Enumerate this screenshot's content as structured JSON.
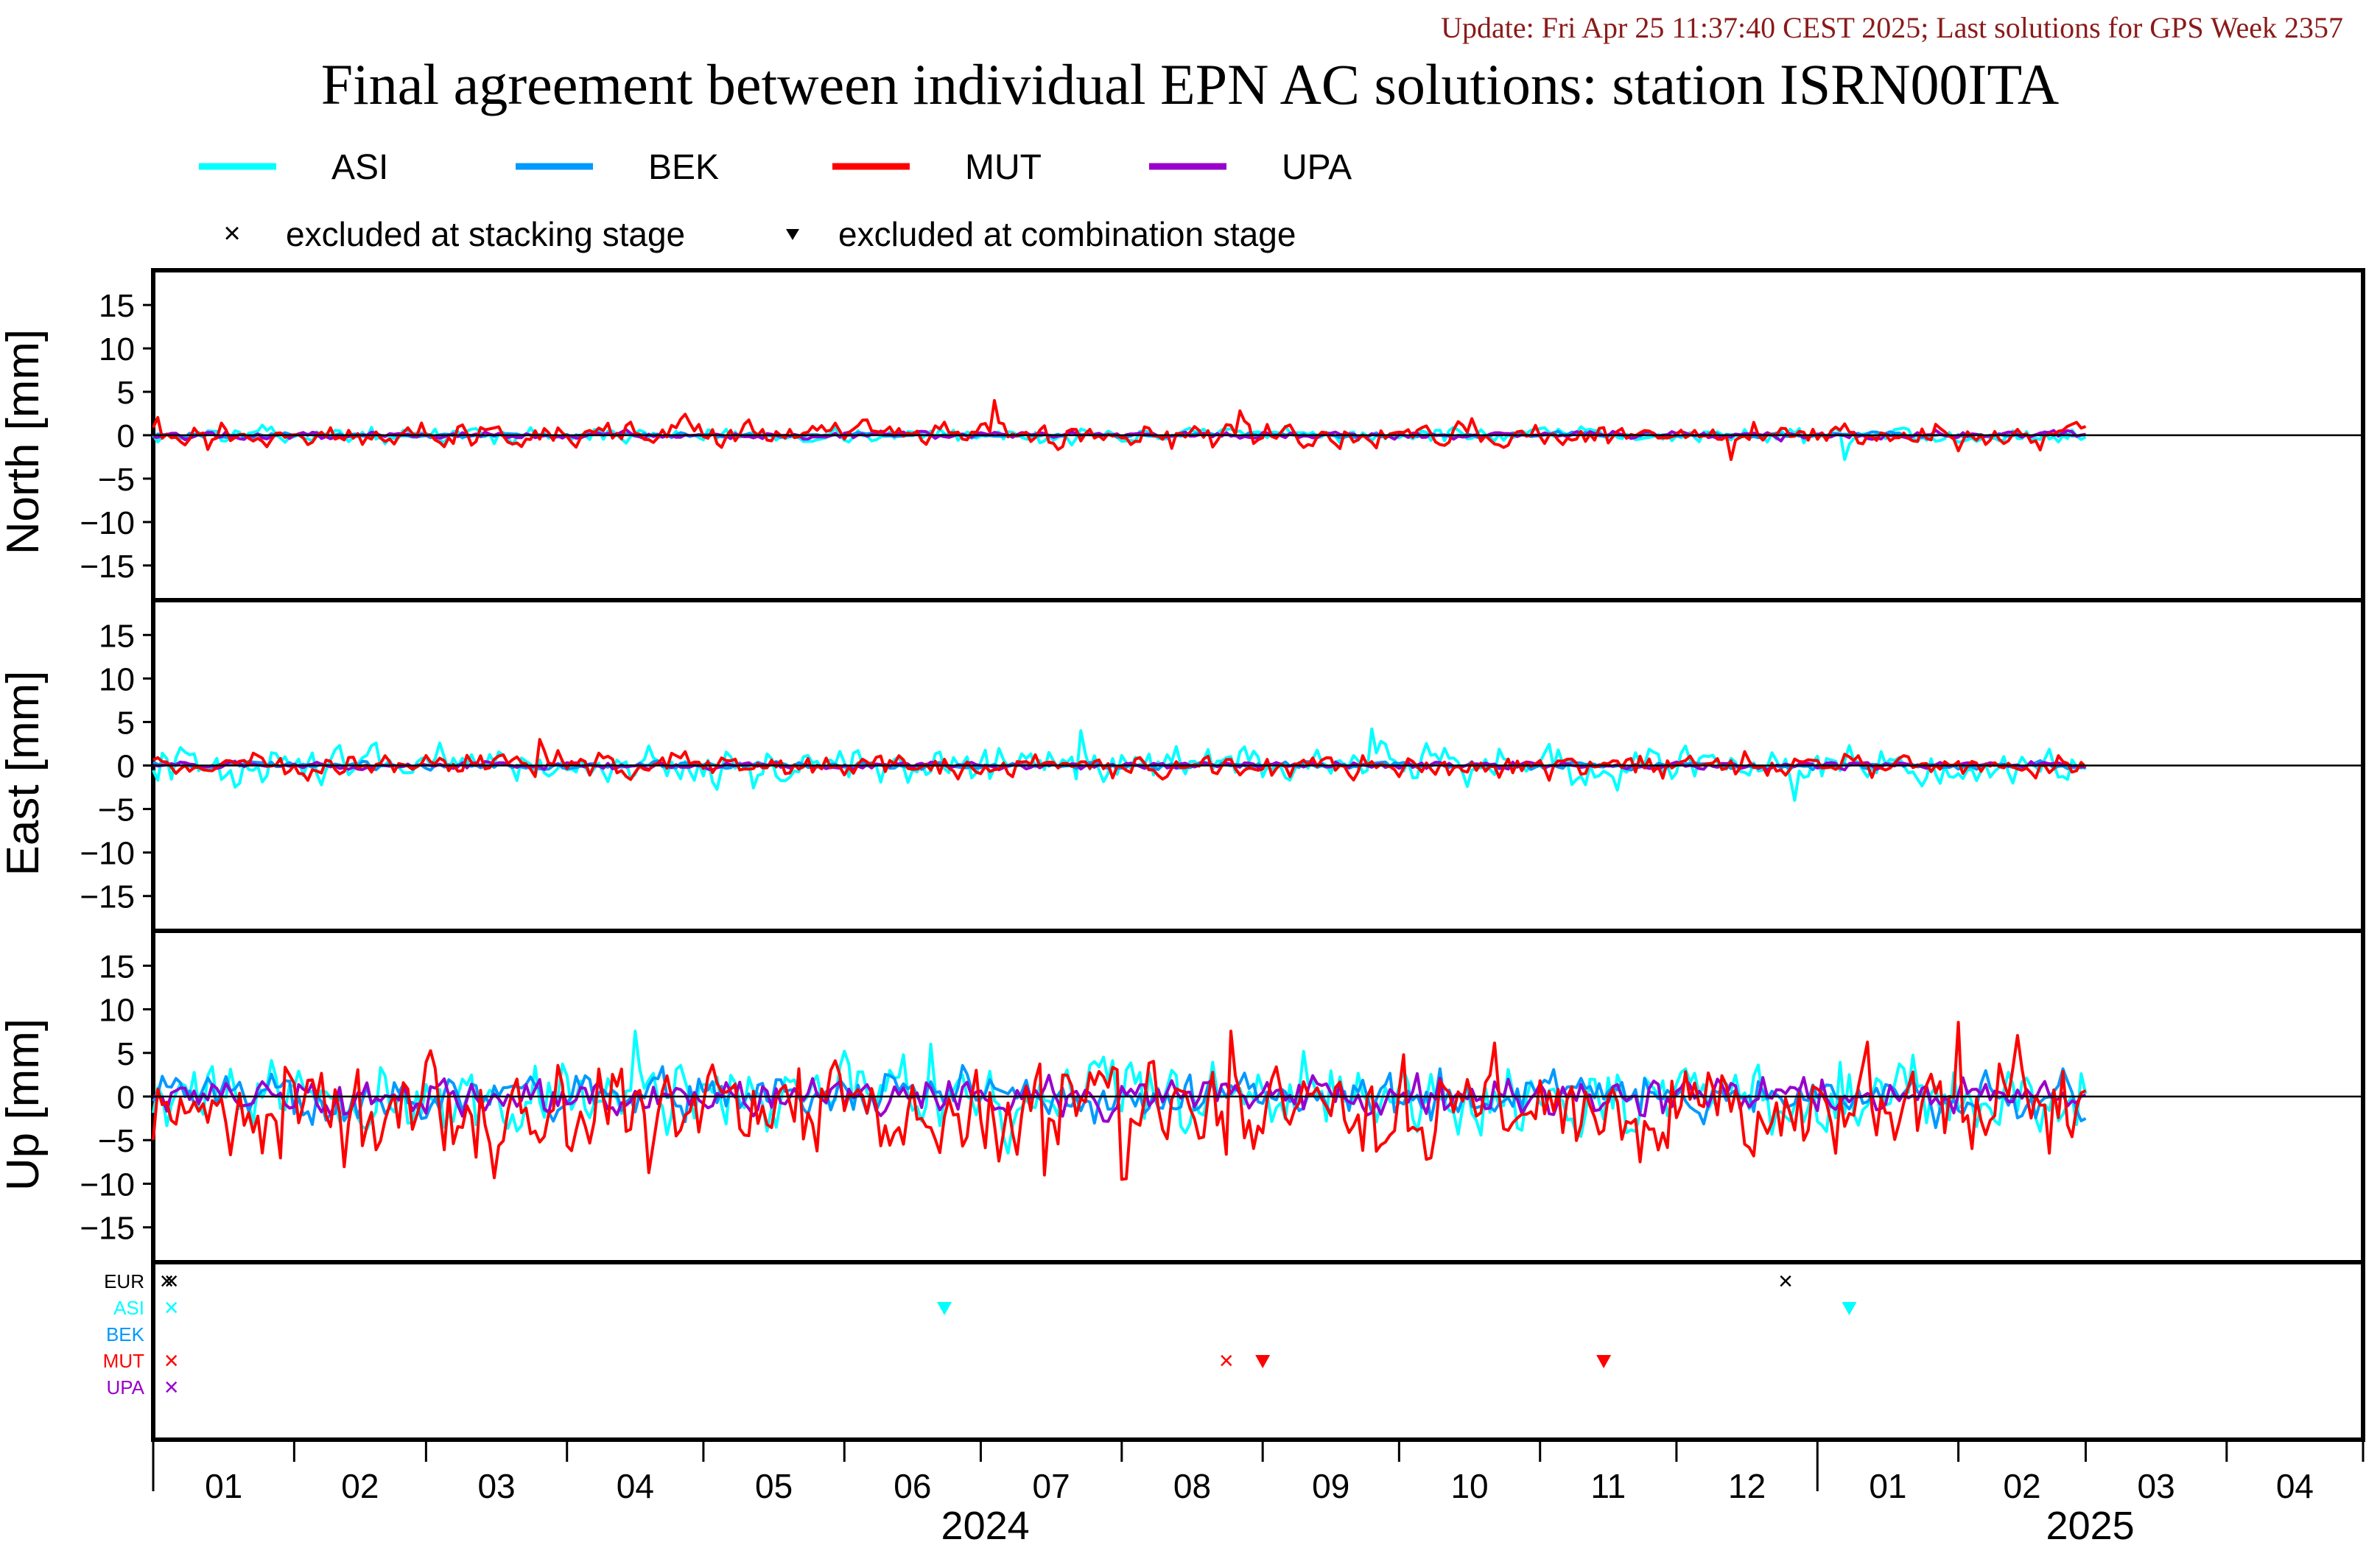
{
  "update_text": "Update: Fri Apr 25 11:37:40 CEST 2025; Last solutions for GPS Week 2357",
  "title": "Final agreement between individual EPN AC solutions: station ISRN00ITA",
  "colors": {
    "ASI": "#00ffff",
    "BEK": "#0099ff",
    "MUT": "#ff0000",
    "UPA": "#9900cc",
    "EUR": "#000000"
  },
  "legend": {
    "entries": [
      {
        "name": "ASI",
        "color": "#00ffff"
      },
      {
        "name": "BEK",
        "color": "#0099ff"
      },
      {
        "name": "MUT",
        "color": "#ff0000"
      },
      {
        "name": "UPA",
        "color": "#9900cc"
      }
    ],
    "stacking_label": "excluded at stacking stage",
    "combination_label": "excluded at combination stage"
  },
  "panels": [
    {
      "key": "north",
      "ylabel": "North [mm]"
    },
    {
      "key": "east",
      "ylabel": "East [mm]"
    },
    {
      "key": "up",
      "ylabel": "Up [mm]"
    }
  ],
  "y_ticks": [
    "15",
    "10",
    "5",
    "0",
    "−5",
    "−10",
    "−15"
  ],
  "exclusion_rows": [
    {
      "label": "EUR",
      "color": "#000000"
    },
    {
      "label": "ASI",
      "color": "#00ffff"
    },
    {
      "label": "BEK",
      "color": "#0099ff"
    },
    {
      "label": "MUT",
      "color": "#ff0000"
    },
    {
      "label": "UPA",
      "color": "#9900cc"
    }
  ],
  "x_month_labels": [
    "01",
    "02",
    "03",
    "04",
    "05",
    "06",
    "07",
    "08",
    "09",
    "10",
    "11",
    "12",
    "01",
    "02",
    "03",
    "04"
  ],
  "x_year_labels": [
    "2024",
    "2025"
  ],
  "chart_data": {
    "type": "line",
    "x_range": [
      "2024-01-01",
      "2025-05-01"
    ],
    "ylim": [
      -19,
      19
    ],
    "panels": [
      {
        "name": "North",
        "ylabel": "North [mm]",
        "series": [
          {
            "name": "ASI",
            "x_start": "2024-01-01",
            "x_end": "2025-03-01",
            "amplitude": 0.6,
            "spikes": [
              [
                "2025-01-07",
                -2.8
              ]
            ]
          },
          {
            "name": "BEK",
            "x_start": "2024-01-01",
            "x_end": "2025-03-01",
            "amplitude": 0.2,
            "spikes": []
          },
          {
            "name": "MUT",
            "x_start": "2024-01-01",
            "x_end": "2025-03-01",
            "amplitude": 1.0,
            "spikes": [
              [
                "2024-07-04",
                4.0
              ],
              [
                "2024-08-27",
                2.8
              ],
              [
                "2024-12-13",
                -2.8
              ]
            ]
          },
          {
            "name": "UPA",
            "x_start": "2024-01-01",
            "x_end": "2025-03-01",
            "amplitude": 0.3,
            "spikes": []
          }
        ]
      },
      {
        "name": "East",
        "ylabel": "East [mm]",
        "series": [
          {
            "name": "ASI",
            "x_start": "2024-01-01",
            "x_end": "2025-03-01",
            "amplitude": 1.5,
            "spikes": [
              [
                "2024-07-23",
                4.0
              ],
              [
                "2024-09-25",
                4.2
              ],
              [
                "2024-12-27",
                -4.0
              ]
            ]
          },
          {
            "name": "BEK",
            "x_start": "2024-01-01",
            "x_end": "2025-03-01",
            "amplitude": 0.3,
            "spikes": []
          },
          {
            "name": "MUT",
            "x_start": "2024-01-01",
            "x_end": "2025-03-01",
            "amplitude": 1.0,
            "spikes": [
              [
                "2024-03-26",
                3.0
              ]
            ]
          },
          {
            "name": "UPA",
            "x_start": "2024-01-01",
            "x_end": "2025-03-01",
            "amplitude": 0.3,
            "spikes": []
          }
        ]
      },
      {
        "name": "Up",
        "ylabel": "Up [mm]",
        "series": [
          {
            "name": "ASI",
            "x_start": "2024-01-01",
            "x_end": "2025-03-01",
            "amplitude": 3.0,
            "spikes": [
              [
                "2024-04-16",
                7.5
              ],
              [
                "2024-06-20",
                6.0
              ]
            ]
          },
          {
            "name": "BEK",
            "x_start": "2024-01-01",
            "x_end": "2025-03-01",
            "amplitude": 1.8,
            "spikes": []
          },
          {
            "name": "MUT",
            "x_start": "2024-01-01",
            "x_end": "2025-03-01",
            "amplitude": 4.0,
            "spikes": [
              [
                "2024-07-15",
                -9.0
              ],
              [
                "2024-08-01",
                -9.5
              ],
              [
                "2024-08-25",
                7.5
              ],
              [
                "2025-02-01",
                8.5
              ],
              [
                "2025-02-14",
                7.0
              ]
            ]
          },
          {
            "name": "UPA",
            "x_start": "2024-01-01",
            "x_end": "2025-03-01",
            "amplitude": 1.5,
            "spikes": []
          }
        ]
      }
    ],
    "exclusions": [
      {
        "ac": "EUR",
        "date": "2024-01-04",
        "type": "stacking"
      },
      {
        "ac": "EUR",
        "date": "2024-01-05",
        "type": "stacking"
      },
      {
        "ac": "EUR",
        "date": "2024-12-25",
        "type": "stacking"
      },
      {
        "ac": "ASI",
        "date": "2024-01-05",
        "type": "stacking"
      },
      {
        "ac": "ASI",
        "date": "2024-06-23",
        "type": "combination"
      },
      {
        "ac": "ASI",
        "date": "2025-01-08",
        "type": "combination"
      },
      {
        "ac": "MUT",
        "date": "2024-01-05",
        "type": "stacking"
      },
      {
        "ac": "MUT",
        "date": "2024-08-24",
        "type": "stacking"
      },
      {
        "ac": "MUT",
        "date": "2024-09-01",
        "type": "combination"
      },
      {
        "ac": "MUT",
        "date": "2024-11-15",
        "type": "combination"
      },
      {
        "ac": "UPA",
        "date": "2024-01-05",
        "type": "stacking"
      }
    ]
  }
}
